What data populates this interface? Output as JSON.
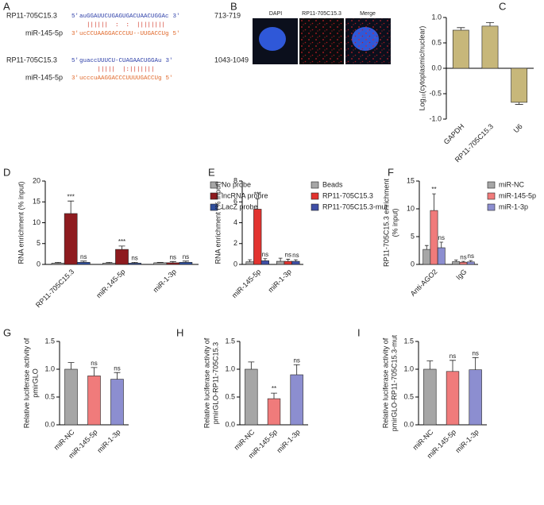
{
  "panel_a": {
    "letter": "A",
    "alignments": [
      {
        "rna_name": "RP11-705C15.3",
        "rna_prime5": "5'",
        "rna_sequence": "auGGAUUCUGAGUGACUAACUGGAc",
        "rna_prime3": "3'",
        "position": "713-719",
        "pairing": "  ||||||  :  :  ||||||||",
        "mirna_name": "miR-145-5p",
        "mirna_prime3": "3'",
        "mirna_sequence": "ucCCUAAGGACCCUU--UUGACCUg",
        "mirna_prime5": "5'"
      },
      {
        "rna_name": "RP11-705C15.3",
        "rna_prime5": "5'",
        "rna_sequence": "guaccUUUCU-CUAGAACUGGAu",
        "rna_prime3": "3'",
        "position": "1043-1049",
        "pairing": "     |||||  |:|||||||",
        "mirna_name": "miR-145-5p",
        "mirna_prime3": "3'",
        "mirna_sequence": "ucccuAAGGACCCUUUUGACCUg",
        "mirna_prime5": "5'"
      }
    ]
  },
  "panel_b": {
    "letter": "B",
    "labels": [
      "DAPI",
      "RP11-705C15.3",
      "Merge"
    ]
  },
  "chart_data": [
    {
      "type": "bar",
      "letter": "C",
      "y_label": [
        "Log₁₀(cytoplasmic/nuclear)"
      ],
      "categories": [
        "GAPDH",
        "RP11-705C15.3",
        "U6"
      ],
      "series": [
        {
          "color": "#c7b77a",
          "values": [
            0.75,
            0.83,
            -0.67
          ],
          "errors": [
            0.05,
            0.07,
            0.04
          ]
        }
      ],
      "ylim": [
        -1,
        1
      ],
      "yticks": [
        {
          "value": -1,
          "label": "-1.0"
        },
        {
          "value": -0.5,
          "label": "-0.5"
        },
        {
          "value": 0,
          "label": "0.0"
        },
        {
          "value": 0.5,
          "label": "0.5"
        },
        {
          "value": 1,
          "label": "1.0"
        }
      ]
    },
    {
      "type": "bar",
      "letter": "D",
      "y_label": [
        "RNA enrichment (% input)"
      ],
      "categories": [
        "RP11-705C15.3",
        "miR-145-5p",
        "miR-1-3p"
      ],
      "series": [
        {
          "name": "No probe",
          "color": "#a6a6a6",
          "values": [
            0.3,
            0.3,
            0.4
          ],
          "errors": [
            0.2,
            0.2,
            0.1
          ],
          "significance": [
            null,
            null,
            null
          ]
        },
        {
          "name": "lncRNA probre",
          "color": "#8e1b1f",
          "values": [
            12.2,
            3.6,
            0.4
          ],
          "errors": [
            3,
            0.8,
            0.3
          ],
          "significance": [
            "***",
            "***",
            "ns"
          ]
        },
        {
          "name": "LacZ probe",
          "color": "#2f4f9e",
          "values": [
            0.5,
            0.3,
            0.5
          ],
          "errors": [
            0.3,
            0.2,
            0.3
          ],
          "significance": [
            "ns",
            "ns",
            "ns"
          ]
        }
      ],
      "ylim": [
        0,
        20
      ],
      "yticks": [
        0,
        5,
        10,
        15,
        20
      ]
    },
    {
      "type": "bar",
      "letter": "E",
      "y_label": [
        "RNA enrichment (% input)"
      ],
      "categories": [
        "miR-145-5p",
        "miR-1-3p"
      ],
      "series": [
        {
          "name": "Beads",
          "color": "#a6a6a6",
          "values": [
            0.25,
            0.3
          ],
          "errors": [
            0.2,
            0.3
          ],
          "significance": [
            null,
            null
          ]
        },
        {
          "name": "RP11-705C15.3",
          "color": "#e2332f",
          "values": [
            5.3,
            0.3
          ],
          "errors": [
            1,
            0.2
          ],
          "significance": [
            "***",
            "ns"
          ]
        },
        {
          "name": "RP11-705C15.3-mut",
          "color": "#3f4fa6",
          "values": [
            0.35,
            0.3
          ],
          "errors": [
            0.2,
            0.15
          ],
          "significance": [
            "ns",
            "ns"
          ]
        }
      ],
      "ylim": [
        0,
        8
      ],
      "yticks": [
        0,
        2,
        4,
        6,
        8
      ]
    },
    {
      "type": "bar",
      "letter": "F",
      "y_label": [
        "RP11-705C15.3 enrichment",
        "(% input)"
      ],
      "categories": [
        "Anti-AGO2",
        "IgG"
      ],
      "series": [
        {
          "name": "miR-NC",
          "color": "#a6a6a6",
          "values": [
            2.7,
            0.5
          ],
          "errors": [
            0.7,
            0.3
          ],
          "significance": [
            null,
            null
          ]
        },
        {
          "name": "miR-145-5p",
          "color": "#f07b7b",
          "values": [
            9.7,
            0.4
          ],
          "errors": [
            3,
            0.15
          ],
          "significance": [
            "**",
            "ns"
          ]
        },
        {
          "name": "miR-1-3p",
          "color": "#8c8ed0",
          "values": [
            3,
            0.45
          ],
          "errors": [
            1,
            0.25
          ],
          "significance": [
            "ns",
            "ns"
          ]
        }
      ],
      "ylim": [
        0,
        15
      ],
      "yticks": [
        0,
        5,
        10,
        15
      ]
    },
    {
      "type": "bar",
      "letter": "G",
      "y_label": [
        "Relative luciferase activity of",
        "pmirGLO"
      ],
      "categories": [
        "miR-NC",
        "miR-145-5p",
        "miR-1-3p"
      ],
      "series": [
        {
          "colors": [
            "#a6a6a6",
            "#f07b7b",
            "#8c8ed0"
          ],
          "values": [
            1,
            0.88,
            0.82
          ],
          "errors": [
            0.12,
            0.15,
            0.12
          ],
          "significance": [
            null,
            "ns",
            "ns"
          ]
        }
      ],
      "ylim": [
        0,
        1.5
      ],
      "yticks": [
        {
          "value": 0,
          "label": "0.0"
        },
        {
          "value": 0.5,
          "label": "0.5"
        },
        {
          "value": 1,
          "label": "1.0"
        },
        {
          "value": 1.5,
          "label": "1.5"
        }
      ]
    },
    {
      "type": "bar",
      "letter": "H",
      "y_label": [
        "Relative luciferase activity of",
        "pmirGLO-RP11-705C15.3"
      ],
      "categories": [
        "miR-NC",
        "miR-145-5p",
        "miR-1-3p"
      ],
      "series": [
        {
          "colors": [
            "#a6a6a6",
            "#f07b7b",
            "#8c8ed0"
          ],
          "values": [
            1,
            0.47,
            0.9
          ],
          "errors": [
            0.13,
            0.1,
            0.18
          ],
          "significance": [
            null,
            "**",
            "ns"
          ]
        }
      ],
      "ylim": [
        0,
        1.5
      ],
      "yticks": [
        {
          "value": 0,
          "label": "0.0"
        },
        {
          "value": 0.5,
          "label": "0.5"
        },
        {
          "value": 1,
          "label": "1.0"
        },
        {
          "value": 1.5,
          "label": "1.5"
        }
      ]
    },
    {
      "type": "bar",
      "letter": "I",
      "y_label": [
        "Relative luciferase activity of",
        "pmirGLO-RP11-705C15.3-mut"
      ],
      "categories": [
        "miR-NC",
        "miR-145-5p",
        "miR-1-3p"
      ],
      "series": [
        {
          "colors": [
            "#a6a6a6",
            "#f07b7b",
            "#8c8ed0"
          ],
          "values": [
            1,
            0.96,
            0.99
          ],
          "errors": [
            0.15,
            0.2,
            0.22
          ],
          "significance": [
            null,
            "ns",
            "ns"
          ]
        }
      ],
      "ylim": [
        0,
        1.5
      ],
      "yticks": [
        {
          "value": 0,
          "label": "0.0"
        },
        {
          "value": 0.5,
          "label": "0.5"
        },
        {
          "value": 1,
          "label": "1.0"
        },
        {
          "value": 1.5,
          "label": "1.5"
        }
      ]
    }
  ]
}
